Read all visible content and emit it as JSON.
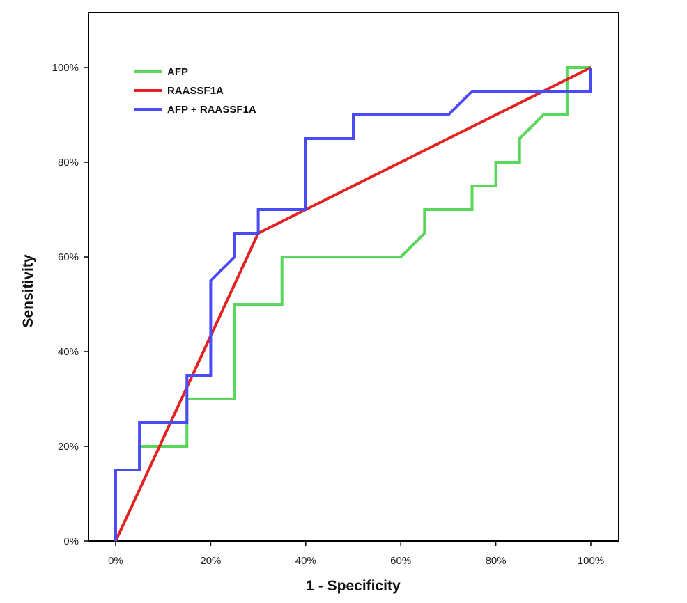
{
  "chart_data": {
    "type": "line",
    "xlabel": "1 - Specificity",
    "ylabel": "Sensitivity",
    "xlim": [
      0,
      1
    ],
    "ylim": [
      0,
      1
    ],
    "x_ticks": [
      "0%",
      "20%",
      "40%",
      "60%",
      "80%",
      "100%"
    ],
    "y_ticks": [
      "0%",
      "20%",
      "40%",
      "60%",
      "80%",
      "100%"
    ],
    "grid": false,
    "legend_position": "top-left",
    "series": [
      {
        "name": "AFP",
        "color": "#5ad65a",
        "points": [
          [
            0,
            0
          ],
          [
            0,
            0.15
          ],
          [
            0.05,
            0.15
          ],
          [
            0.05,
            0.2
          ],
          [
            0.15,
            0.2
          ],
          [
            0.15,
            0.3
          ],
          [
            0.25,
            0.3
          ],
          [
            0.25,
            0.5
          ],
          [
            0.35,
            0.5
          ],
          [
            0.35,
            0.6
          ],
          [
            0.6,
            0.6
          ],
          [
            0.65,
            0.65
          ],
          [
            0.65,
            0.7
          ],
          [
            0.75,
            0.7
          ],
          [
            0.75,
            0.75
          ],
          [
            0.8,
            0.75
          ],
          [
            0.8,
            0.8
          ],
          [
            0.85,
            0.8
          ],
          [
            0.85,
            0.85
          ],
          [
            0.9,
            0.9
          ],
          [
            0.95,
            0.9
          ],
          [
            0.95,
            1.0
          ],
          [
            1.0,
            1.0
          ]
        ]
      },
      {
        "name": "RAASSF1A",
        "color": "#e52222",
        "points": [
          [
            0,
            0
          ],
          [
            0.3,
            0.65
          ],
          [
            1.0,
            1.0
          ]
        ]
      },
      {
        "name": "AFP + RAASSF1A",
        "color": "#4b4bf5",
        "points": [
          [
            0,
            0
          ],
          [
            0,
            0.15
          ],
          [
            0.05,
            0.15
          ],
          [
            0.05,
            0.25
          ],
          [
            0.15,
            0.25
          ],
          [
            0.15,
            0.35
          ],
          [
            0.2,
            0.35
          ],
          [
            0.2,
            0.55
          ],
          [
            0.25,
            0.6
          ],
          [
            0.25,
            0.65
          ],
          [
            0.3,
            0.65
          ],
          [
            0.3,
            0.7
          ],
          [
            0.4,
            0.7
          ],
          [
            0.4,
            0.85
          ],
          [
            0.5,
            0.85
          ],
          [
            0.5,
            0.9
          ],
          [
            0.7,
            0.9
          ],
          [
            0.75,
            0.95
          ],
          [
            1.0,
            0.95
          ],
          [
            1.0,
            1.0
          ]
        ]
      }
    ]
  }
}
